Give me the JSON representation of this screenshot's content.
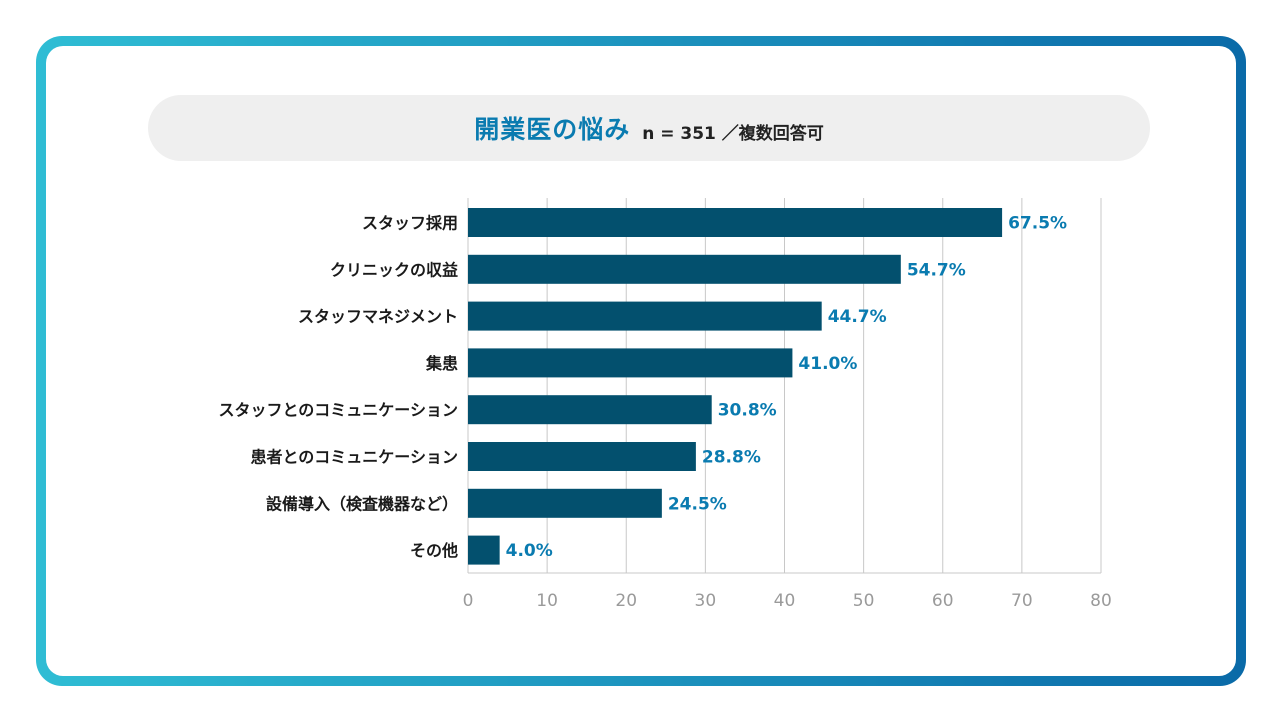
{
  "title": {
    "main": "開業医の悩み",
    "sub": "n = 351 ／複数回答可"
  },
  "colors": {
    "frame_start": "#2fbdd4",
    "frame_end": "#0a6aa8",
    "bar": "#03506e",
    "value_label": "#0a7bb0",
    "title_main": "#0a7bb0",
    "grid": "#c8c8c8",
    "pill": "#efefef"
  },
  "chart_data": {
    "type": "bar",
    "orientation": "horizontal",
    "categories": [
      "スタッフ採用",
      "クリニックの収益",
      "スタッフマネジメント",
      "集患",
      "スタッフとのコミュニケーション",
      "患者とのコミュニケーション",
      "設備導入（検査機器など）",
      "その他"
    ],
    "values": [
      67.5,
      54.7,
      44.7,
      41.0,
      30.8,
      28.8,
      24.5,
      4.0
    ],
    "value_labels": [
      "67.5%",
      "54.7%",
      "44.7%",
      "41.0%",
      "30.8%",
      "28.8%",
      "24.5%",
      "4.0%"
    ],
    "x_ticks": [
      "0",
      "10",
      "20",
      "30",
      "40",
      "50",
      "60",
      "70",
      "80"
    ],
    "xlim": [
      0,
      80
    ],
    "grid": true
  }
}
